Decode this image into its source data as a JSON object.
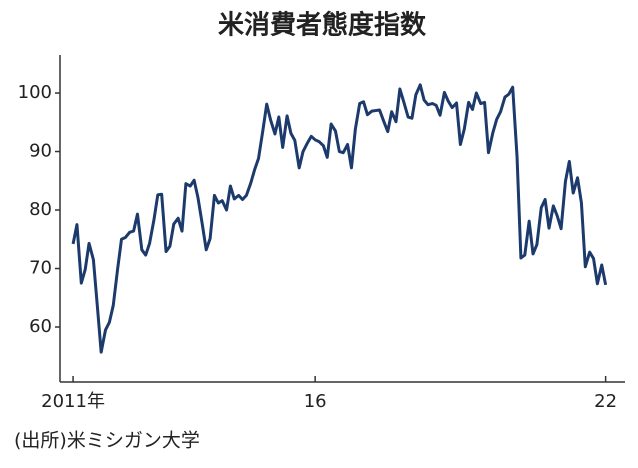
{
  "chart_data": {
    "type": "line",
    "title": "米消費者態度指数",
    "source": "(出所)米ミシガン大学",
    "x": [
      2011.0,
      2011.08,
      2011.17,
      2011.25,
      2011.33,
      2011.42,
      2011.5,
      2011.58,
      2011.67,
      2011.75,
      2011.83,
      2011.92,
      2012.0,
      2012.08,
      2012.17,
      2012.25,
      2012.33,
      2012.42,
      2012.5,
      2012.58,
      2012.67,
      2012.75,
      2012.83,
      2012.92,
      2013.0,
      2013.08,
      2013.17,
      2013.25,
      2013.33,
      2013.42,
      2013.5,
      2013.58,
      2013.67,
      2013.75,
      2013.83,
      2013.92,
      2014.0,
      2014.08,
      2014.17,
      2014.25,
      2014.33,
      2014.42,
      2014.5,
      2014.58,
      2014.67,
      2014.75,
      2014.83,
      2014.92,
      2015.0,
      2015.08,
      2015.17,
      2015.25,
      2015.33,
      2015.42,
      2015.5,
      2015.58,
      2015.67,
      2015.75,
      2015.83,
      2015.92,
      2016.0,
      2016.08,
      2016.17,
      2016.25,
      2016.33,
      2016.42,
      2016.5,
      2016.58,
      2016.67,
      2016.75,
      2016.83,
      2016.92,
      2017.0,
      2017.08,
      2017.17,
      2017.25,
      2017.33,
      2017.42,
      2017.5,
      2017.58,
      2017.67,
      2017.75,
      2017.83,
      2017.92,
      2018.0,
      2018.08,
      2018.17,
      2018.25,
      2018.33,
      2018.42,
      2018.5,
      2018.58,
      2018.67,
      2018.75,
      2018.83,
      2018.92,
      2019.0,
      2019.08,
      2019.17,
      2019.25,
      2019.33,
      2019.42,
      2019.5,
      2019.58,
      2019.67,
      2019.75,
      2019.83,
      2019.92,
      2020.0,
      2020.08,
      2020.17,
      2020.25,
      2020.33,
      2020.42,
      2020.5,
      2020.58,
      2020.67,
      2020.75,
      2020.83,
      2020.92,
      2021.0,
      2021.08,
      2021.17,
      2021.25,
      2021.33,
      2021.42,
      2021.5,
      2021.58,
      2021.67,
      2021.75,
      2021.83,
      2021.92,
      2022.0
    ],
    "series": [
      {
        "color": "#1c3a6b",
        "values": [
          74.2,
          77.5,
          67.5,
          69.8,
          74.3,
          71.5,
          63.7,
          55.7,
          59.5,
          60.8,
          63.7,
          69.9,
          75.0,
          75.3,
          76.2,
          76.4,
          79.3,
          73.2,
          72.3,
          74.3,
          78.3,
          82.6,
          82.7,
          72.9,
          73.8,
          77.6,
          78.6,
          76.4,
          84.5,
          84.1,
          85.1,
          82.1,
          77.5,
          73.2,
          75.1,
          82.5,
          81.2,
          81.6,
          80.0,
          84.1,
          81.9,
          82.5,
          81.8,
          82.5,
          84.6,
          86.9,
          88.8,
          93.6,
          98.1,
          95.4,
          93.0,
          95.9,
          90.7,
          96.1,
          93.1,
          91.9,
          87.2,
          90.0,
          91.3,
          92.6,
          92.0,
          91.7,
          91.0,
          89.0,
          94.7,
          93.5,
          90.0,
          89.8,
          91.2,
          87.2,
          93.8,
          98.2,
          98.5,
          96.3,
          96.9,
          97.0,
          97.1,
          95.1,
          93.4,
          96.8,
          95.1,
          100.7,
          98.5,
          95.9,
          95.7,
          99.7,
          101.4,
          98.8,
          98.0,
          98.2,
          97.9,
          96.2,
          100.1,
          98.6,
          97.5,
          98.3,
          91.2,
          93.8,
          98.4,
          97.2,
          100.0,
          98.2,
          98.4,
          89.8,
          93.2,
          95.5,
          96.8,
          99.3,
          99.8,
          101.0,
          89.1,
          71.8,
          72.3,
          78.1,
          72.5,
          74.1,
          80.4,
          81.8,
          76.9,
          80.7,
          79.0,
          76.8,
          84.9,
          88.3,
          82.9,
          85.5,
          81.2,
          70.3,
          72.8,
          71.7,
          67.4,
          70.6,
          67.2
        ]
      }
    ],
    "xlim": [
      2010.73,
      2022.4
    ],
    "ylim": [
      50.6,
      106.5
    ],
    "xticks": [
      {
        "value": 2011,
        "label": "2011年"
      },
      {
        "value": 2016,
        "label": "16"
      },
      {
        "value": 2022,
        "label": "22"
      }
    ],
    "yticks": [
      60,
      70,
      80,
      90,
      100
    ]
  }
}
